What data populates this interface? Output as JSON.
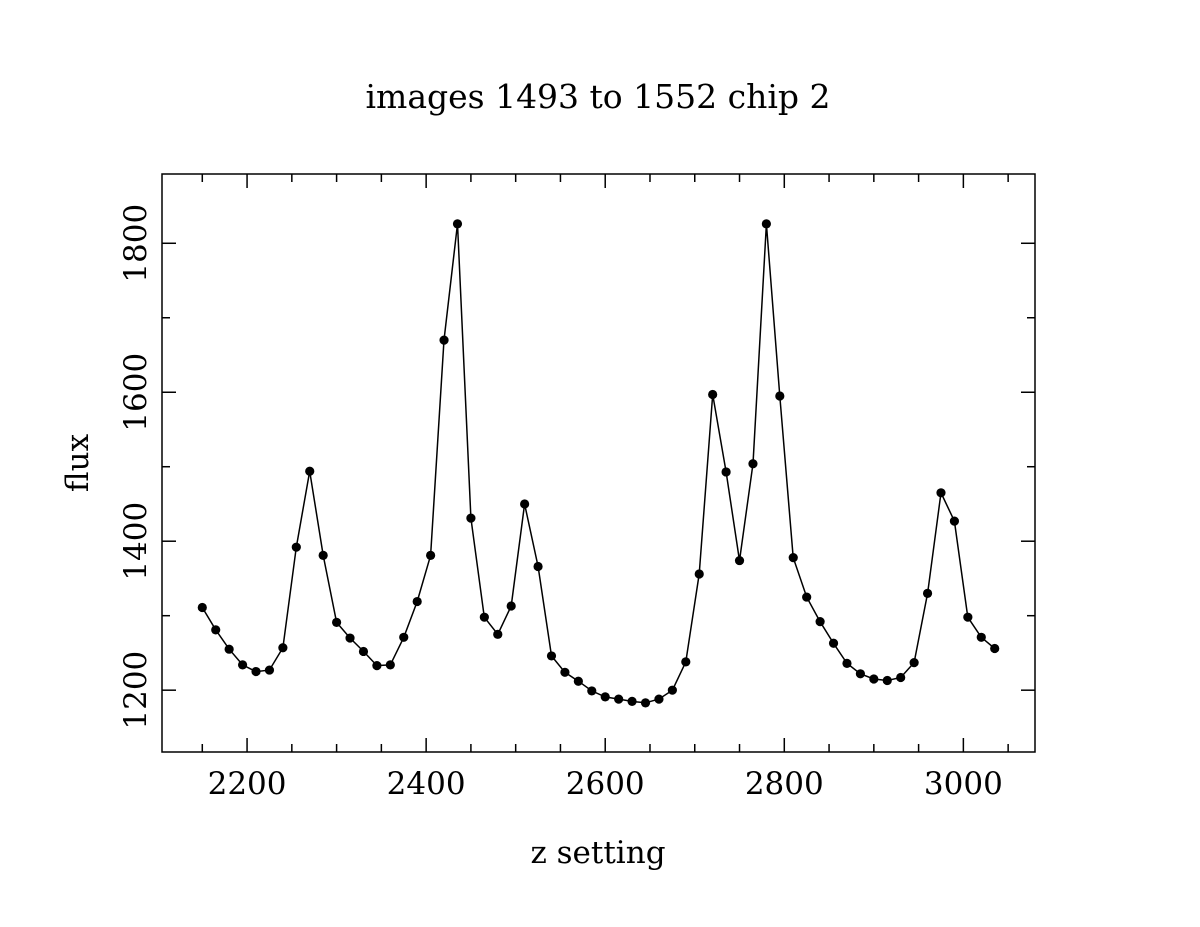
{
  "chart_data": {
    "type": "line",
    "title": "images 1493 to 1552 chip 2",
    "xlabel": "z setting",
    "ylabel": "flux",
    "xlim": [
      2105,
      3080
    ],
    "ylim": [
      1117,
      1893
    ],
    "x_ticks": [
      2200,
      2400,
      2600,
      2800,
      3000
    ],
    "y_ticks": [
      1200,
      1400,
      1600,
      1800
    ],
    "x_minor_step": 50,
    "y_minor_step": 100,
    "grid": false,
    "marker": "filled-circle",
    "line_color": "#000000",
    "x": [
      2150,
      2165,
      2180,
      2195,
      2210,
      2225,
      2240,
      2255,
      2270,
      2285,
      2300,
      2315,
      2330,
      2345,
      2360,
      2375,
      2390,
      2405,
      2420,
      2435,
      2450,
      2465,
      2480,
      2495,
      2510,
      2525,
      2540,
      2555,
      2570,
      2585,
      2600,
      2615,
      2630,
      2645,
      2660,
      2675,
      2690,
      2705,
      2720,
      2735,
      2750,
      2765,
      2780,
      2795,
      2810,
      2825,
      2840,
      2855,
      2870,
      2885,
      2900,
      2915,
      2930,
      2945,
      2960,
      2975,
      2990,
      3005,
      3020,
      3035
    ],
    "series": [
      {
        "values": [
          1311,
          1281,
          1255,
          1234,
          1225,
          1227,
          1257,
          1392,
          1494,
          1381,
          1291,
          1270,
          1252,
          1233,
          1234,
          1271,
          1319,
          1381,
          1670,
          1826,
          1431,
          1298,
          1275,
          1313,
          1450,
          1366,
          1246,
          1224,
          1212,
          1199,
          1191,
          1188,
          1185,
          1183,
          1188,
          1200,
          1238,
          1356,
          1597,
          1493,
          1374,
          1504,
          1826,
          1595,
          1378,
          1325,
          1292,
          1263,
          1236,
          1222,
          1215,
          1213,
          1217,
          1237,
          1330,
          1465,
          1427,
          1298,
          1271,
          1256
        ]
      }
    ]
  }
}
